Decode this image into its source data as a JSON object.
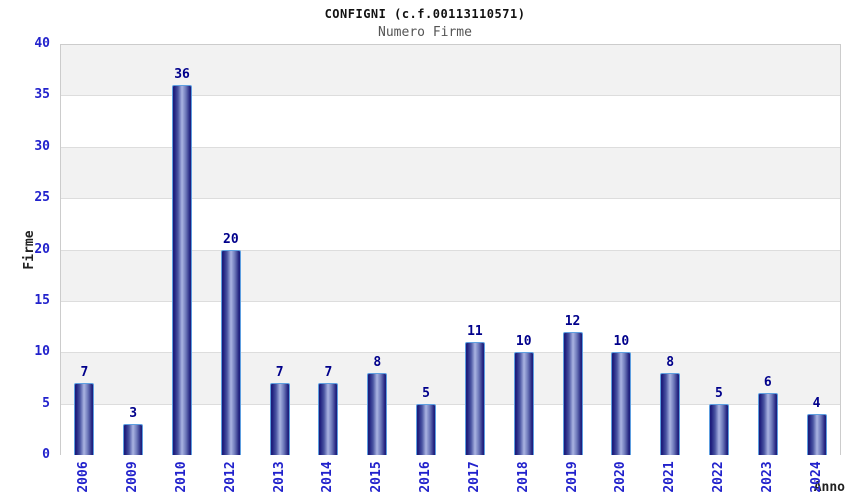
{
  "chart_data": {
    "type": "bar",
    "title": "CONFIGNI (c.f.00113110571)",
    "subtitle": "Numero Firme",
    "xlabel": "Anno",
    "ylabel": "Firme",
    "categories": [
      "2006",
      "2009",
      "2010",
      "2012",
      "2013",
      "2014",
      "2015",
      "2016",
      "2017",
      "2018",
      "2019",
      "2020",
      "2021",
      "2022",
      "2023",
      "2024"
    ],
    "values": [
      7,
      3,
      36,
      20,
      7,
      7,
      8,
      5,
      11,
      10,
      12,
      10,
      8,
      5,
      6,
      4
    ],
    "ylim": [
      0,
      40
    ],
    "ytick_step": 5,
    "yticks": [
      0,
      5,
      10,
      15,
      20,
      25,
      30,
      35,
      40
    ],
    "grid": "horizontal-bands",
    "legend": "none",
    "colors": {
      "title_color": "#111111",
      "subtitle_color": "#555555",
      "axis_label_color": "#222222",
      "tick_label": "#2222cc",
      "value_label": "#00008b",
      "bar_border": "#5e9fe0",
      "bar_gradient": [
        "#1d1d7c",
        "#1d1d7c",
        "#4a55a2",
        "#aab4e2",
        "#6b76b8",
        "#23237f",
        "#1d1d7c"
      ],
      "bar_gradient_stops": [
        "0%",
        "6%",
        "28%",
        "50%",
        "72%",
        "94%",
        "100%"
      ],
      "band_gray": "#f2f2f2",
      "band_white": "#ffffff",
      "gridline": "#dddddd",
      "plot_border": "#cccccc"
    }
  }
}
